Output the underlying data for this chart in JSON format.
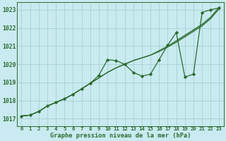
{
  "title": "Graphe pression niveau de la mer (hPa)",
  "background_color": "#c8eaf0",
  "grid_color": "#a0cccc",
  "line_color": "#2d6a2d",
  "marker_color": "#2d6a2d",
  "xlim": [
    -0.5,
    23.5
  ],
  "ylim": [
    1016.6,
    1023.4
  ],
  "yticks": [
    1017,
    1018,
    1019,
    1020,
    1021,
    1022,
    1023
  ],
  "xticks": [
    0,
    1,
    2,
    3,
    4,
    5,
    6,
    7,
    8,
    9,
    10,
    11,
    12,
    13,
    14,
    15,
    16,
    17,
    18,
    19,
    20,
    21,
    22,
    23
  ],
  "series_smooth": [
    [
      1017.15,
      1017.2,
      1017.4,
      1017.7,
      1017.9,
      1018.1,
      1018.35,
      1018.65,
      1018.95,
      1019.25,
      1019.55,
      1019.8,
      1020.0,
      1020.2,
      1020.35,
      1020.5,
      1020.7,
      1020.95,
      1021.2,
      1021.5,
      1021.8,
      1022.1,
      1022.5,
      1023.05
    ],
    [
      1017.15,
      1017.2,
      1017.4,
      1017.7,
      1017.9,
      1018.1,
      1018.35,
      1018.65,
      1018.95,
      1019.25,
      1019.55,
      1019.8,
      1020.0,
      1020.2,
      1020.35,
      1020.5,
      1020.7,
      1020.95,
      1021.25,
      1021.55,
      1021.85,
      1022.15,
      1022.55,
      1023.1
    ],
    [
      1017.15,
      1017.2,
      1017.4,
      1017.7,
      1017.9,
      1018.1,
      1018.35,
      1018.65,
      1018.95,
      1019.25,
      1019.55,
      1019.8,
      1020.0,
      1020.2,
      1020.35,
      1020.5,
      1020.75,
      1021.0,
      1021.3,
      1021.6,
      1021.9,
      1022.2,
      1022.6,
      1023.15
    ]
  ],
  "series_zigzag": {
    "x": [
      0,
      1,
      2,
      3,
      4,
      5,
      6,
      7,
      8,
      9,
      10,
      11,
      12,
      13,
      14,
      15,
      16,
      17,
      18,
      19,
      20,
      21,
      22,
      23
    ],
    "y": [
      1017.15,
      1017.2,
      1017.4,
      1017.7,
      1017.9,
      1018.1,
      1018.35,
      1018.65,
      1018.95,
      1019.4,
      1020.25,
      1020.2,
      1020.0,
      1019.55,
      1019.35,
      1019.45,
      1020.25,
      1021.05,
      1021.75,
      1019.3,
      1019.45,
      1022.85,
      1023.0,
      1023.1
    ]
  }
}
